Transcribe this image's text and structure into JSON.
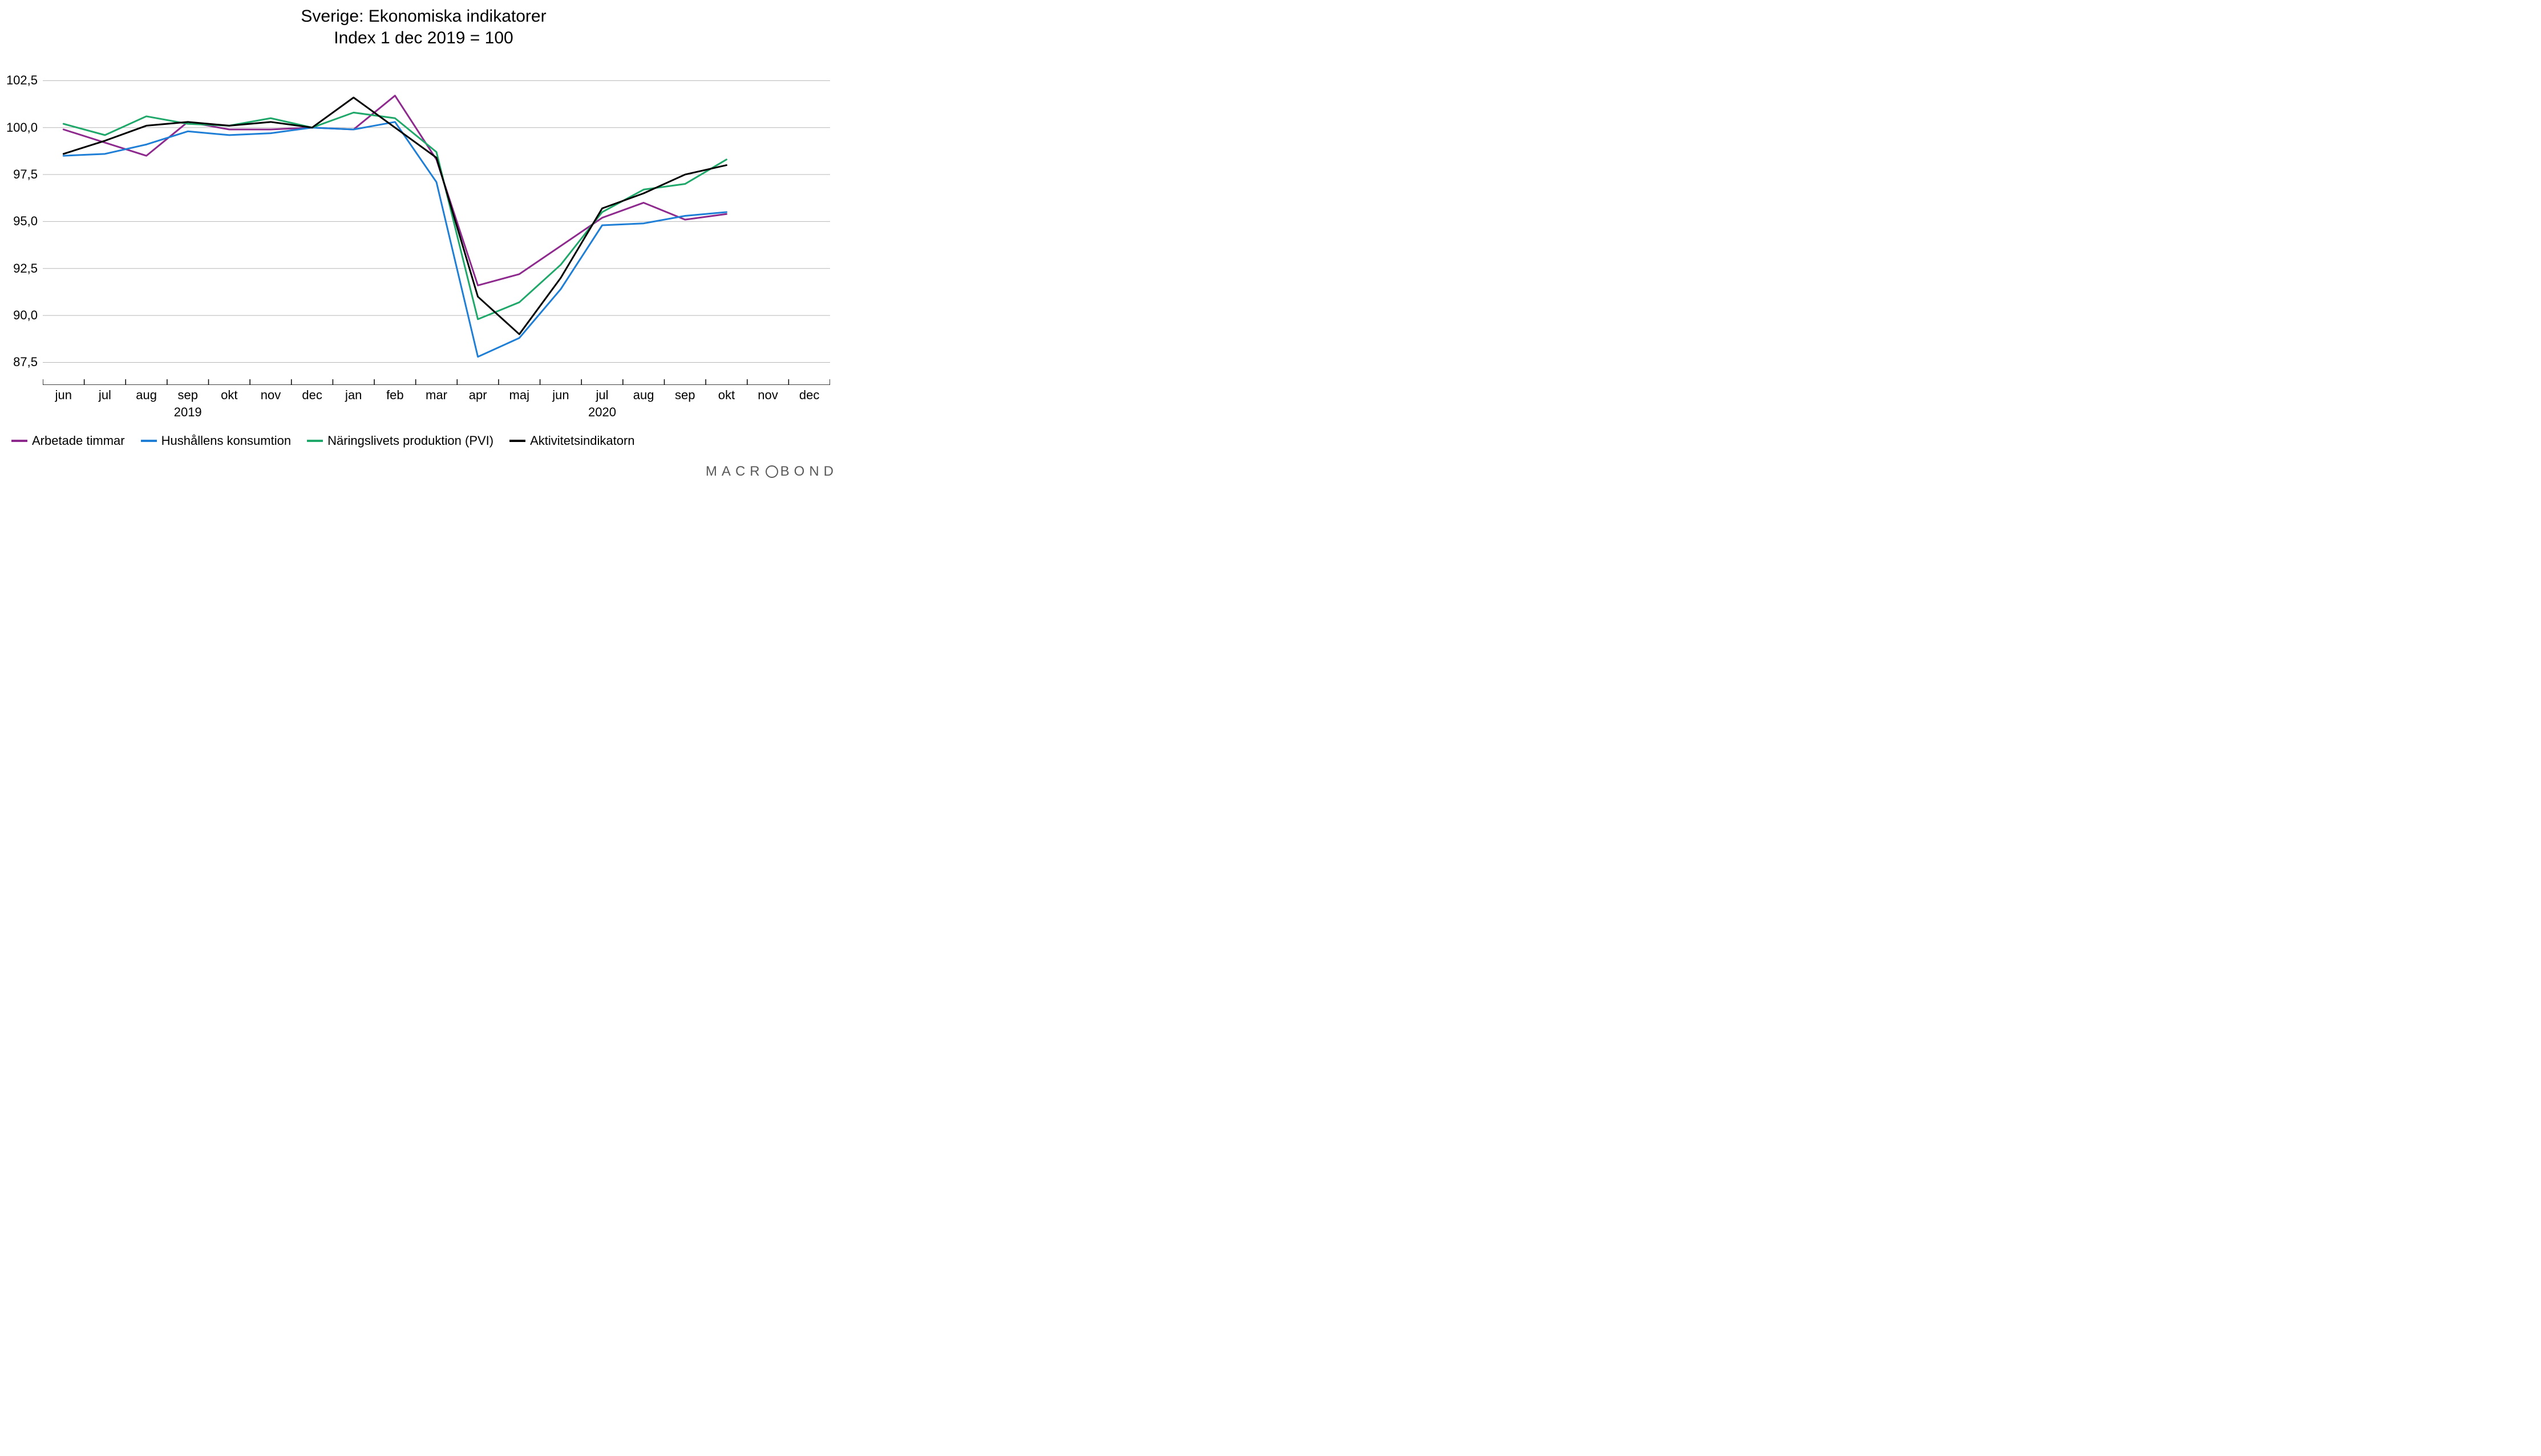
{
  "chart": {
    "type": "line",
    "title": "Sverige: Ekonomiska indikatorer",
    "subtitle": "Index 1 dec 2019 = 100",
    "title_fontsize": 30,
    "subtitle_fontsize": 30,
    "background_color": "#ffffff",
    "grid_color": "#b7b7b7",
    "axis_color": "#000000",
    "tick_color": "#000000",
    "label_fontsize": 22,
    "x_categories": [
      "jun",
      "jul",
      "aug",
      "sep",
      "okt",
      "nov",
      "dec",
      "jan",
      "feb",
      "mar",
      "apr",
      "maj",
      "jun",
      "jul",
      "aug",
      "sep",
      "okt",
      "nov",
      "dec"
    ],
    "x_years": {
      "2019": "sep",
      "2020": "jul"
    },
    "y_ticks": [
      87.5,
      90.0,
      92.5,
      95.0,
      97.5,
      100.0,
      102.5
    ],
    "y_tick_labels": [
      "87,5",
      "90,0",
      "92,5",
      "95,0",
      "97,5",
      "100,0",
      "102,5"
    ],
    "ylim": [
      86.3,
      103.3
    ],
    "line_width": 3,
    "series": [
      {
        "name": "Arbetade timmar",
        "color": "#8e2a8e",
        "values": [
          99.9,
          99.2,
          98.5,
          100.3,
          99.9,
          99.9,
          100.0,
          99.9,
          101.7,
          98.3,
          91.6,
          92.2,
          93.7,
          95.2,
          96.0,
          95.1,
          95.4
        ]
      },
      {
        "name": "Hushållens konsumtion",
        "color": "#1f7fd6",
        "values": [
          98.5,
          98.6,
          99.1,
          99.8,
          99.6,
          99.7,
          100.0,
          99.9,
          100.3,
          97.1,
          87.8,
          88.8,
          91.4,
          94.8,
          94.9,
          95.3,
          95.5
        ]
      },
      {
        "name": "Näringslivets produktion (PVI)",
        "color": "#1fa86a",
        "values": [
          100.2,
          99.6,
          100.6,
          100.2,
          100.1,
          100.5,
          100.0,
          100.8,
          100.5,
          98.7,
          89.8,
          90.7,
          92.7,
          95.5,
          96.7,
          97.0,
          98.3
        ]
      },
      {
        "name": "Aktivitetsindikatorn",
        "color": "#000000",
        "values": [
          98.6,
          99.3,
          100.1,
          100.3,
          100.1,
          100.3,
          100.0,
          101.6,
          100.0,
          98.4,
          91.0,
          89.0,
          92.0,
          95.7,
          96.5,
          97.5,
          98.0
        ]
      }
    ],
    "legend_fontsize": 22,
    "brand": "MACROBOND",
    "brand_color": "#595959"
  }
}
